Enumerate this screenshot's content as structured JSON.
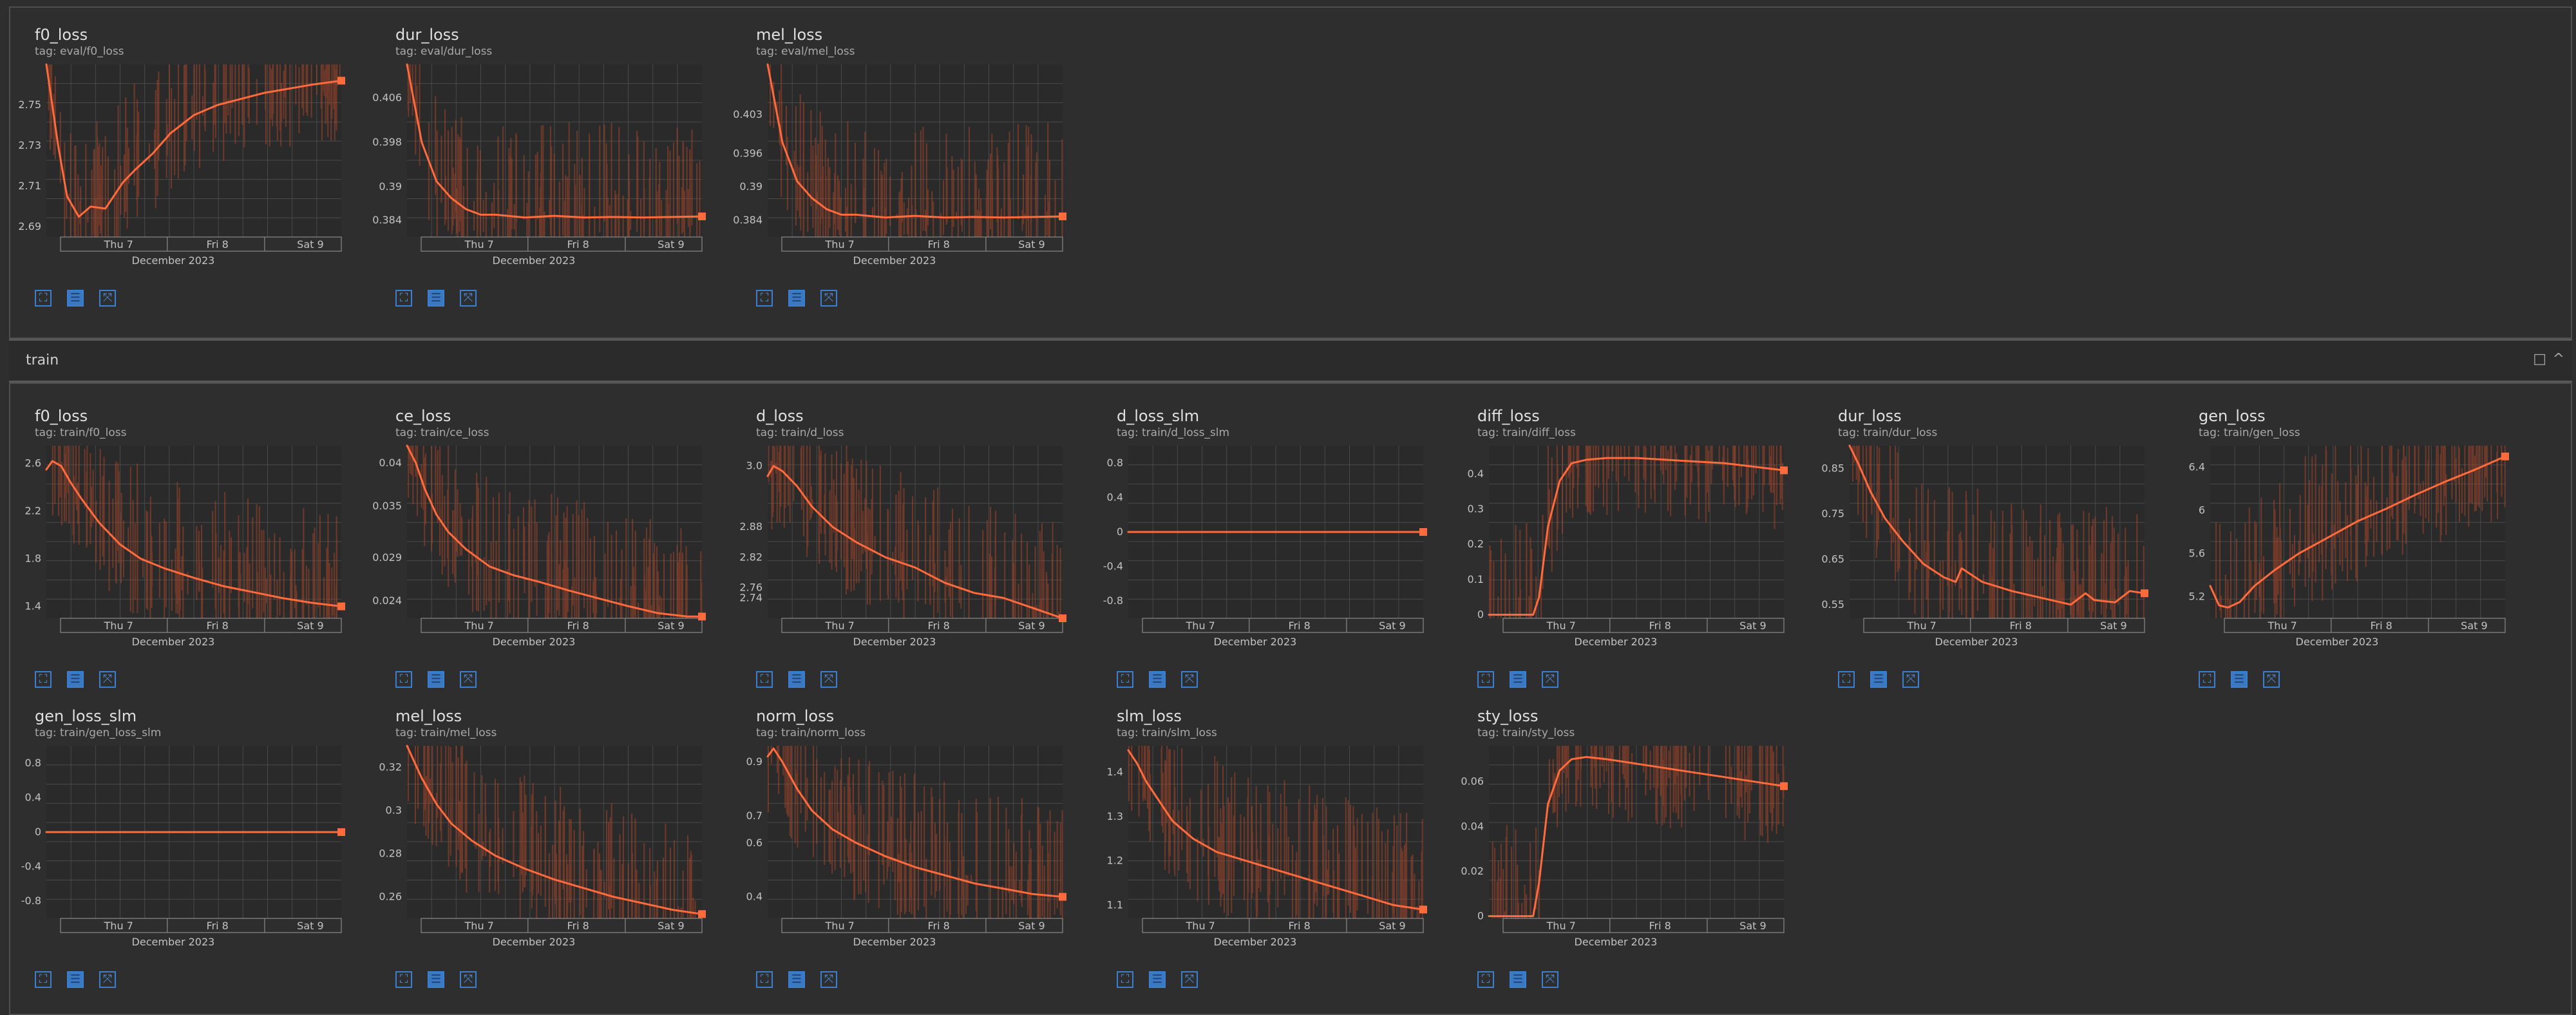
{
  "section_train": {
    "title": "train"
  },
  "chart_data": [
    {
      "type": "line",
      "title": "f0_loss",
      "tag": "tag: eval/f0_loss",
      "yticks": [
        "2.75",
        "2.73",
        "2.71",
        "2.69"
      ],
      "ylim": [
        2.685,
        2.77
      ],
      "xticks": [
        "Thu 7",
        "Fri 8",
        "Sat 9"
      ],
      "xlabel": "December 2023",
      "x": [
        0.0,
        0.04,
        0.07,
        0.11,
        0.15,
        0.2,
        0.26,
        0.3,
        0.36,
        0.42,
        0.5,
        0.58,
        0.66,
        0.74,
        0.82,
        0.9,
        1.0
      ],
      "y": [
        2.77,
        2.73,
        2.705,
        2.695,
        2.7,
        2.699,
        2.712,
        2.718,
        2.726,
        2.736,
        2.745,
        2.75,
        2.753,
        2.756,
        2.758,
        2.76,
        2.762
      ]
    },
    {
      "type": "line",
      "title": "dur_loss",
      "tag": "tag: eval/dur_loss",
      "yticks": [
        "0.406",
        "0.398",
        "0.39",
        "0.384"
      ],
      "ylim": [
        0.381,
        0.412
      ],
      "xticks": [
        "Thu 7",
        "Fri 8",
        "Sat 9"
      ],
      "xlabel": "December 2023",
      "x": [
        0.0,
        0.05,
        0.1,
        0.15,
        0.2,
        0.25,
        0.3,
        0.4,
        0.5,
        0.6,
        0.7,
        0.8,
        0.9,
        1.0
      ],
      "y": [
        0.412,
        0.398,
        0.391,
        0.388,
        0.386,
        0.385,
        0.385,
        0.3845,
        0.3848,
        0.3845,
        0.3846,
        0.3845,
        0.3846,
        0.3847
      ]
    },
    {
      "type": "line",
      "title": "mel_loss",
      "tag": "tag: eval/mel_loss",
      "yticks": [
        "0.403",
        "0.396",
        "0.39",
        "0.384"
      ],
      "ylim": [
        0.381,
        0.412
      ],
      "xticks": [
        "Thu 7",
        "Fri 8",
        "Sat 9"
      ],
      "xlabel": "December 2023",
      "x": [
        0.0,
        0.05,
        0.1,
        0.15,
        0.2,
        0.25,
        0.3,
        0.4,
        0.5,
        0.6,
        0.7,
        0.8,
        0.9,
        1.0
      ],
      "y": [
        0.412,
        0.398,
        0.391,
        0.388,
        0.386,
        0.385,
        0.385,
        0.3845,
        0.3848,
        0.3845,
        0.3846,
        0.3845,
        0.3846,
        0.3847
      ]
    },
    {
      "type": "line",
      "title": "f0_loss",
      "tag": "tag: train/f0_loss",
      "yticks": [
        "2.6",
        "2.2",
        "1.8",
        "1.4"
      ],
      "ylim": [
        1.3,
        2.75
      ],
      "xticks": [
        "Thu 7",
        "Fri 8",
        "Sat 9"
      ],
      "xlabel": "December 2023",
      "x": [
        0.0,
        0.02,
        0.05,
        0.08,
        0.12,
        0.18,
        0.25,
        0.32,
        0.4,
        0.5,
        0.6,
        0.7,
        0.8,
        0.9,
        1.0
      ],
      "y": [
        2.55,
        2.62,
        2.58,
        2.45,
        2.3,
        2.1,
        1.92,
        1.8,
        1.72,
        1.64,
        1.57,
        1.52,
        1.47,
        1.43,
        1.4
      ]
    },
    {
      "type": "line",
      "title": "ce_loss",
      "tag": "tag: train/ce_loss",
      "yticks": [
        "0.04",
        "0.035",
        "0.029",
        "0.024"
      ],
      "ylim": [
        0.022,
        0.042
      ],
      "xticks": [
        "Thu 7",
        "Fri 8",
        "Sat 9"
      ],
      "xlabel": "December 2023",
      "x": [
        0.0,
        0.03,
        0.06,
        0.1,
        0.14,
        0.2,
        0.28,
        0.36,
        0.45,
        0.55,
        0.65,
        0.75,
        0.85,
        0.95,
        1.0
      ],
      "y": [
        0.042,
        0.04,
        0.037,
        0.034,
        0.032,
        0.03,
        0.028,
        0.027,
        0.0262,
        0.0252,
        0.0243,
        0.0234,
        0.0226,
        0.0222,
        0.0222
      ]
    },
    {
      "type": "line",
      "title": "d_loss",
      "tag": "tag: train/d_loss",
      "yticks": [
        "3.0",
        "2.88",
        "2.82",
        "2.76",
        "2.74"
      ],
      "ylim": [
        2.7,
        3.04
      ],
      "xticks": [
        "Thu 7",
        "Fri 8",
        "Sat 9"
      ],
      "xlabel": "December 2023",
      "x": [
        0.0,
        0.02,
        0.05,
        0.1,
        0.15,
        0.22,
        0.3,
        0.4,
        0.5,
        0.6,
        0.7,
        0.8,
        0.9,
        1.0
      ],
      "y": [
        2.98,
        3.0,
        2.99,
        2.96,
        2.92,
        2.88,
        2.85,
        2.82,
        2.8,
        2.77,
        2.75,
        2.74,
        2.72,
        2.7
      ]
    },
    {
      "type": "line",
      "title": "d_loss_slm",
      "tag": "tag: train/d_loss_slm",
      "yticks": [
        "0.8",
        "0.4",
        "0",
        "-0.4",
        "-0.8"
      ],
      "ylim": [
        -1.0,
        1.0
      ],
      "xticks": [
        "Thu 7",
        "Fri 8",
        "Sat 9"
      ],
      "xlabel": "December 2023",
      "x": [
        0.0,
        1.0
      ],
      "y": [
        0,
        0
      ]
    },
    {
      "type": "line",
      "title": "diff_loss",
      "tag": "tag: train/diff_loss",
      "yticks": [
        "0.4",
        "0.3",
        "0.2",
        "0.1",
        "0"
      ],
      "ylim": [
        -0.01,
        0.48
      ],
      "xticks": [
        "Thu 7",
        "Fri 8",
        "Sat 9"
      ],
      "xlabel": "December 2023",
      "x": [
        0.0,
        0.15,
        0.17,
        0.2,
        0.24,
        0.28,
        0.33,
        0.4,
        0.5,
        0.6,
        0.7,
        0.8,
        0.9,
        1.0
      ],
      "y": [
        0,
        0,
        0.05,
        0.25,
        0.38,
        0.43,
        0.44,
        0.445,
        0.445,
        0.44,
        0.435,
        0.43,
        0.42,
        0.41
      ]
    },
    {
      "type": "line",
      "title": "dur_loss",
      "tag": "tag: train/dur_loss",
      "yticks": [
        "0.85",
        "0.75",
        "0.65",
        "0.55"
      ],
      "ylim": [
        0.52,
        0.9
      ],
      "xticks": [
        "Thu 7",
        "Fri 8",
        "Sat 9"
      ],
      "xlabel": "December 2023",
      "x": [
        0.0,
        0.03,
        0.07,
        0.12,
        0.18,
        0.25,
        0.32,
        0.36,
        0.38,
        0.45,
        0.55,
        0.65,
        0.75,
        0.8,
        0.83,
        0.9,
        0.95,
        1.0
      ],
      "y": [
        0.9,
        0.86,
        0.8,
        0.74,
        0.69,
        0.64,
        0.61,
        0.6,
        0.63,
        0.6,
        0.58,
        0.565,
        0.55,
        0.575,
        0.56,
        0.555,
        0.58,
        0.575
      ]
    },
    {
      "type": "line",
      "title": "gen_loss",
      "tag": "tag: train/gen_loss",
      "yticks": [
        "6.4",
        "6",
        "5.6",
        "5.2"
      ],
      "ylim": [
        5.0,
        6.6
      ],
      "xticks": [
        "Thu 7",
        "Fri 8",
        "Sat 9"
      ],
      "xlabel": "December 2023",
      "x": [
        0.0,
        0.03,
        0.06,
        0.1,
        0.15,
        0.22,
        0.3,
        0.4,
        0.5,
        0.6,
        0.7,
        0.8,
        0.9,
        1.0
      ],
      "y": [
        5.3,
        5.12,
        5.1,
        5.15,
        5.3,
        5.45,
        5.6,
        5.75,
        5.9,
        6.02,
        6.15,
        6.27,
        6.38,
        6.5
      ]
    },
    {
      "type": "line",
      "title": "gen_loss_slm",
      "tag": "tag: train/gen_loss_slm",
      "yticks": [
        "0.8",
        "0.4",
        "0",
        "-0.4",
        "-0.8"
      ],
      "ylim": [
        -1.0,
        1.0
      ],
      "xticks": [
        "Thu 7",
        "Fri 8",
        "Sat 9"
      ],
      "xlabel": "December 2023",
      "x": [
        0.0,
        1.0
      ],
      "y": [
        0,
        0
      ]
    },
    {
      "type": "line",
      "title": "mel_loss",
      "tag": "tag: train/mel_loss",
      "yticks": [
        "0.32",
        "0.3",
        "0.28",
        "0.26"
      ],
      "ylim": [
        0.25,
        0.33
      ],
      "xticks": [
        "Thu 7",
        "Fri 8",
        "Sat 9"
      ],
      "xlabel": "December 2023",
      "x": [
        0.0,
        0.05,
        0.1,
        0.15,
        0.22,
        0.3,
        0.4,
        0.5,
        0.6,
        0.7,
        0.8,
        0.9,
        1.0
      ],
      "y": [
        0.33,
        0.315,
        0.303,
        0.294,
        0.286,
        0.279,
        0.273,
        0.268,
        0.264,
        0.26,
        0.257,
        0.254,
        0.252
      ]
    },
    {
      "type": "line",
      "title": "norm_loss",
      "tag": "tag: train/norm_loss",
      "yticks": [
        "0.9",
        "0.7",
        "0.6",
        "0.4"
      ],
      "ylim": [
        0.32,
        0.96
      ],
      "xticks": [
        "Thu 7",
        "Fri 8",
        "Sat 9"
      ],
      "xlabel": "December 2023",
      "x": [
        0.0,
        0.02,
        0.05,
        0.1,
        0.15,
        0.22,
        0.3,
        0.4,
        0.5,
        0.6,
        0.7,
        0.8,
        0.9,
        1.0
      ],
      "y": [
        0.92,
        0.95,
        0.9,
        0.8,
        0.72,
        0.65,
        0.6,
        0.55,
        0.51,
        0.48,
        0.45,
        0.43,
        0.41,
        0.4
      ]
    },
    {
      "type": "line",
      "title": "slm_loss",
      "tag": "tag: train/slm_loss",
      "yticks": [
        "1.4",
        "1.3",
        "1.2",
        "1.1"
      ],
      "ylim": [
        1.07,
        1.46
      ],
      "xticks": [
        "Thu 7",
        "Fri 8",
        "Sat 9"
      ],
      "xlabel": "December 2023",
      "x": [
        0.0,
        0.03,
        0.06,
        0.1,
        0.15,
        0.22,
        0.3,
        0.4,
        0.5,
        0.6,
        0.7,
        0.8,
        0.9,
        1.0
      ],
      "y": [
        1.45,
        1.42,
        1.38,
        1.34,
        1.29,
        1.25,
        1.22,
        1.2,
        1.18,
        1.16,
        1.14,
        1.12,
        1.1,
        1.09
      ]
    },
    {
      "type": "line",
      "title": "sty_loss",
      "tag": "tag: train/sty_loss",
      "yticks": [
        "0.06",
        "0.04",
        "0.02",
        "0"
      ],
      "ylim": [
        -0.001,
        0.076
      ],
      "xticks": [
        "Thu 7",
        "Fri 8",
        "Sat 9"
      ],
      "xlabel": "December 2023",
      "x": [
        0.0,
        0.15,
        0.17,
        0.2,
        0.24,
        0.28,
        0.33,
        0.4,
        0.5,
        0.6,
        0.7,
        0.8,
        0.9,
        1.0
      ],
      "y": [
        0,
        0,
        0.015,
        0.05,
        0.065,
        0.07,
        0.071,
        0.07,
        0.068,
        0.066,
        0.064,
        0.062,
        0.06,
        0.058
      ]
    }
  ],
  "card_toolbar": {
    "expand_icon": "⛶",
    "data_icon": "☰",
    "fit_icon": "⤧"
  },
  "colors": {
    "background": "#2e2e2e",
    "plot_bg": "#2a2a2a",
    "grid": "#4a4a4a",
    "line": "#ff6b3d",
    "noise": "#a8472a",
    "toolbar": "#3d7fcf"
  }
}
